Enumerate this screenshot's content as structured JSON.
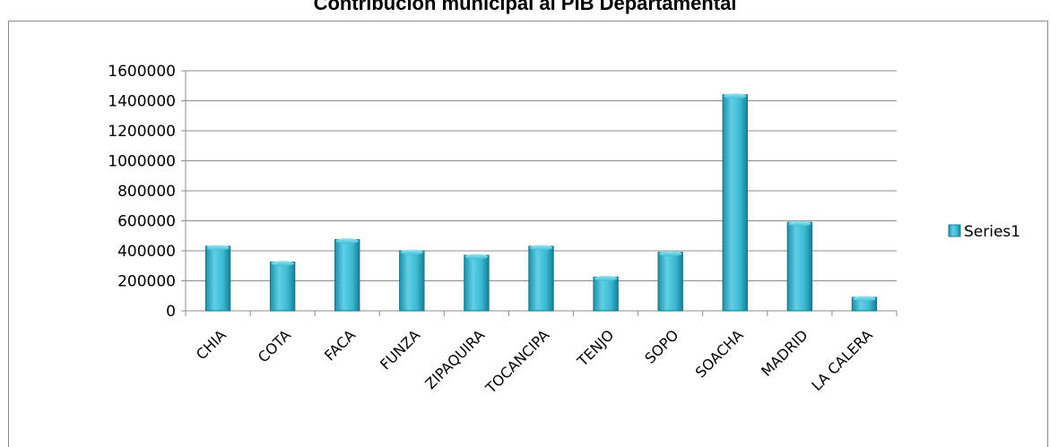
{
  "chart_data": {
    "type": "bar",
    "title": "Contribución municipal al PIB Departamental",
    "categories": [
      "CHIA",
      "COTA",
      "FACA",
      "FUNZA",
      "ZIPAQUIRA",
      "TOCANCIPA",
      "TENJO",
      "SOPO",
      "SOACHA",
      "MADRID",
      "LA CALERA"
    ],
    "series": [
      {
        "name": "Series1",
        "values": [
          430000,
          325000,
          475000,
          400000,
          370000,
          430000,
          225000,
          390000,
          1440000,
          590000,
          90000
        ]
      }
    ],
    "ylim": [
      0,
      1600000
    ],
    "yticks": [
      0,
      200000,
      400000,
      600000,
      800000,
      1000000,
      1200000,
      1400000,
      1600000
    ],
    "grid": true,
    "legend_position": "right",
    "bar_color": "#36b6d0"
  }
}
